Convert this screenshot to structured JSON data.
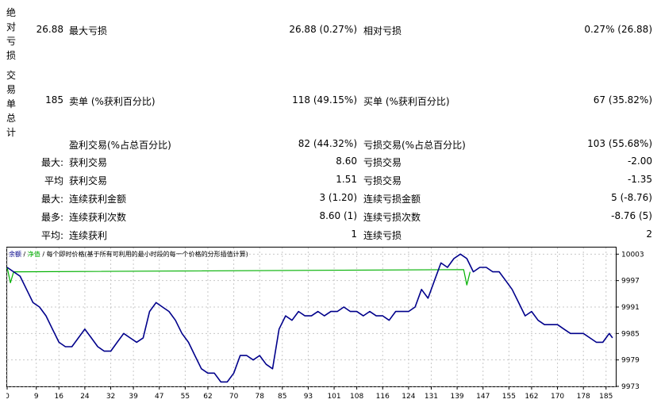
{
  "stats": {
    "abs_drawdown": {
      "label": "绝对亏损",
      "value": "26.88",
      "max_label": "最大亏损",
      "max_value": "26.88 (0.27%)",
      "rel_label": "相对亏损",
      "rel_value": "0.27% (26.88)"
    },
    "trades_total": {
      "label": "交易单总计",
      "value": "185",
      "short_label": "卖单 (%获利百分比)",
      "short_value": "118 (49.15%)",
      "long_label": "买单 (%获利百分比)",
      "long_value": "67 (35.82%)"
    },
    "profit_trades_label": "盈利交易(%占总百分比)",
    "profit_trades_value": "82 (44.32%)",
    "loss_trades_label": "亏损交易(%占总百分比)",
    "loss_trades_value": "103 (55.68%)",
    "rows": [
      {
        "prefix": "最大:",
        "left_label": "获利交易",
        "left_value": "8.60",
        "right_label": "亏损交易",
        "right_value": "-2.00"
      },
      {
        "prefix": "平均",
        "left_label": "获利交易",
        "left_value": "1.51",
        "right_label": "亏损交易",
        "right_value": "-1.35"
      },
      {
        "prefix": "最大:",
        "left_label": "连续获利金额",
        "left_value": "3 (1.20)",
        "right_label": "连续亏损金额",
        "right_value": "5 (-8.76)"
      },
      {
        "prefix": "最多:",
        "left_label": "连续获利次数",
        "left_value": "8.60 (1)",
        "right_label": "连续亏损次数",
        "right_value": "-8.76 (5)"
      },
      {
        "prefix": "平均:",
        "left_label": "连续获利",
        "left_value": "1",
        "right_label": "连续亏损",
        "right_value": "2"
      }
    ]
  },
  "chart_legend": {
    "balance": "余额",
    "sep1": " / ",
    "equity": "净值",
    "sep2": " / ",
    "desc": "每个即时价格(基于所有可利用的最小时段的每一个价格的分形插值计算)"
  },
  "colors": {
    "balance": "#00008b",
    "equity": "#00b000",
    "grid": "#c8c8c8"
  },
  "chart_data": {
    "type": "line",
    "title": "",
    "xlabel": "",
    "ylabel": "",
    "x_ticks": [
      "0",
      "9",
      "16",
      "24",
      "32",
      "39",
      "47",
      "55",
      "62",
      "70",
      "78",
      "85",
      "93",
      "101",
      "108",
      "116",
      "124",
      "131",
      "139",
      "147",
      "155",
      "162",
      "170",
      "178",
      "185"
    ],
    "y_ticks": [
      "10003",
      "9997",
      "9991",
      "9985",
      "9979",
      "9973"
    ],
    "ylim": [
      9973,
      10004.5
    ],
    "xlim": [
      0,
      188
    ],
    "grid": true,
    "series": [
      {
        "name": "余额",
        "x": [
          0,
          2,
          4,
          6,
          8,
          10,
          12,
          14,
          16,
          18,
          20,
          22,
          24,
          26,
          28,
          30,
          32,
          34,
          36,
          38,
          40,
          42,
          44,
          46,
          48,
          50,
          52,
          54,
          56,
          58,
          60,
          62,
          64,
          66,
          68,
          70,
          72,
          74,
          76,
          78,
          80,
          82,
          84,
          86,
          88,
          90,
          92,
          94,
          96,
          98,
          100,
          102,
          104,
          106,
          108,
          110,
          112,
          114,
          116,
          118,
          120,
          122,
          124,
          126,
          128,
          130,
          132,
          134,
          136,
          138,
          140,
          142,
          144,
          146,
          148,
          150,
          152,
          154,
          156,
          158,
          160,
          162,
          164,
          166,
          168,
          170,
          172,
          174,
          176,
          178,
          180,
          182,
          184,
          186,
          187
        ],
        "values": [
          10000,
          9999,
          9998,
          9995,
          9992,
          9991,
          9989,
          9986,
          9983,
          9982,
          9982,
          9984,
          9986,
          9984,
          9982,
          9981,
          9981,
          9983,
          9985,
          9984,
          9983,
          9984,
          9990,
          9992,
          9991,
          9990,
          9988,
          9985,
          9983,
          9980,
          9977,
          9976,
          9976,
          9974,
          9974,
          9976,
          9980,
          9980,
          9979,
          9980,
          9978,
          9977,
          9986,
          9989,
          9988,
          9990,
          9989,
          9989,
          9990,
          9989,
          9990,
          9990,
          9991,
          9990,
          9990,
          9989,
          9990,
          9989,
          9989,
          9988,
          9990,
          9990,
          9990,
          9991,
          9995,
          9993,
          9997,
          10001,
          10000,
          10002,
          10003,
          10002,
          9999,
          10000,
          10000,
          9999,
          9999,
          9997,
          9995,
          9992,
          9989,
          9990,
          9988,
          9987,
          9987,
          9987,
          9986,
          9985,
          9985,
          9985,
          9984,
          9983,
          9983,
          9985,
          9984
        ]
      },
      {
        "name": "净值",
        "x": [
          0,
          1,
          2,
          3,
          141,
          142,
          143
        ],
        "values": [
          10000,
          9996.5,
          9999,
          9999,
          9999.5,
          9996,
          9999
        ]
      }
    ]
  }
}
